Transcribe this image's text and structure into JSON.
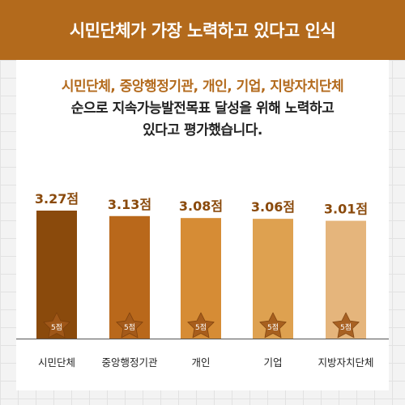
{
  "header": {
    "title": "시민단체가 가장 노력하고 있다고 인식"
  },
  "headline": {
    "accent_line": "시민단체, 중앙행정기관, 개인, 기업, 지방자치단체",
    "line2": "순으로 지속가능발전목표 달성을 위해 노력하고",
    "line3": "있다고 평가했습니다."
  },
  "colors": {
    "header_bg": "#b36a1c",
    "accent_text": "#b36a1c",
    "bars": [
      "#8a4a0c",
      "#b9681b",
      "#d68c35",
      "#dea150",
      "#e5b57c"
    ],
    "star_fill": "#a2591a"
  },
  "chart_data": {
    "type": "bar",
    "categories": [
      "시민단체",
      "중앙행정기관",
      "개인",
      "기업",
      "지방자치단체"
    ],
    "values": [
      3.27,
      3.13,
      3.08,
      3.06,
      3.01
    ],
    "value_labels": [
      "3.27점",
      "3.13점",
      "3.08점",
      "3.06점",
      "3.01점"
    ],
    "max_label": "5점",
    "ylim": [
      0,
      5
    ],
    "title": "",
    "xlabel": "",
    "ylabel": ""
  }
}
